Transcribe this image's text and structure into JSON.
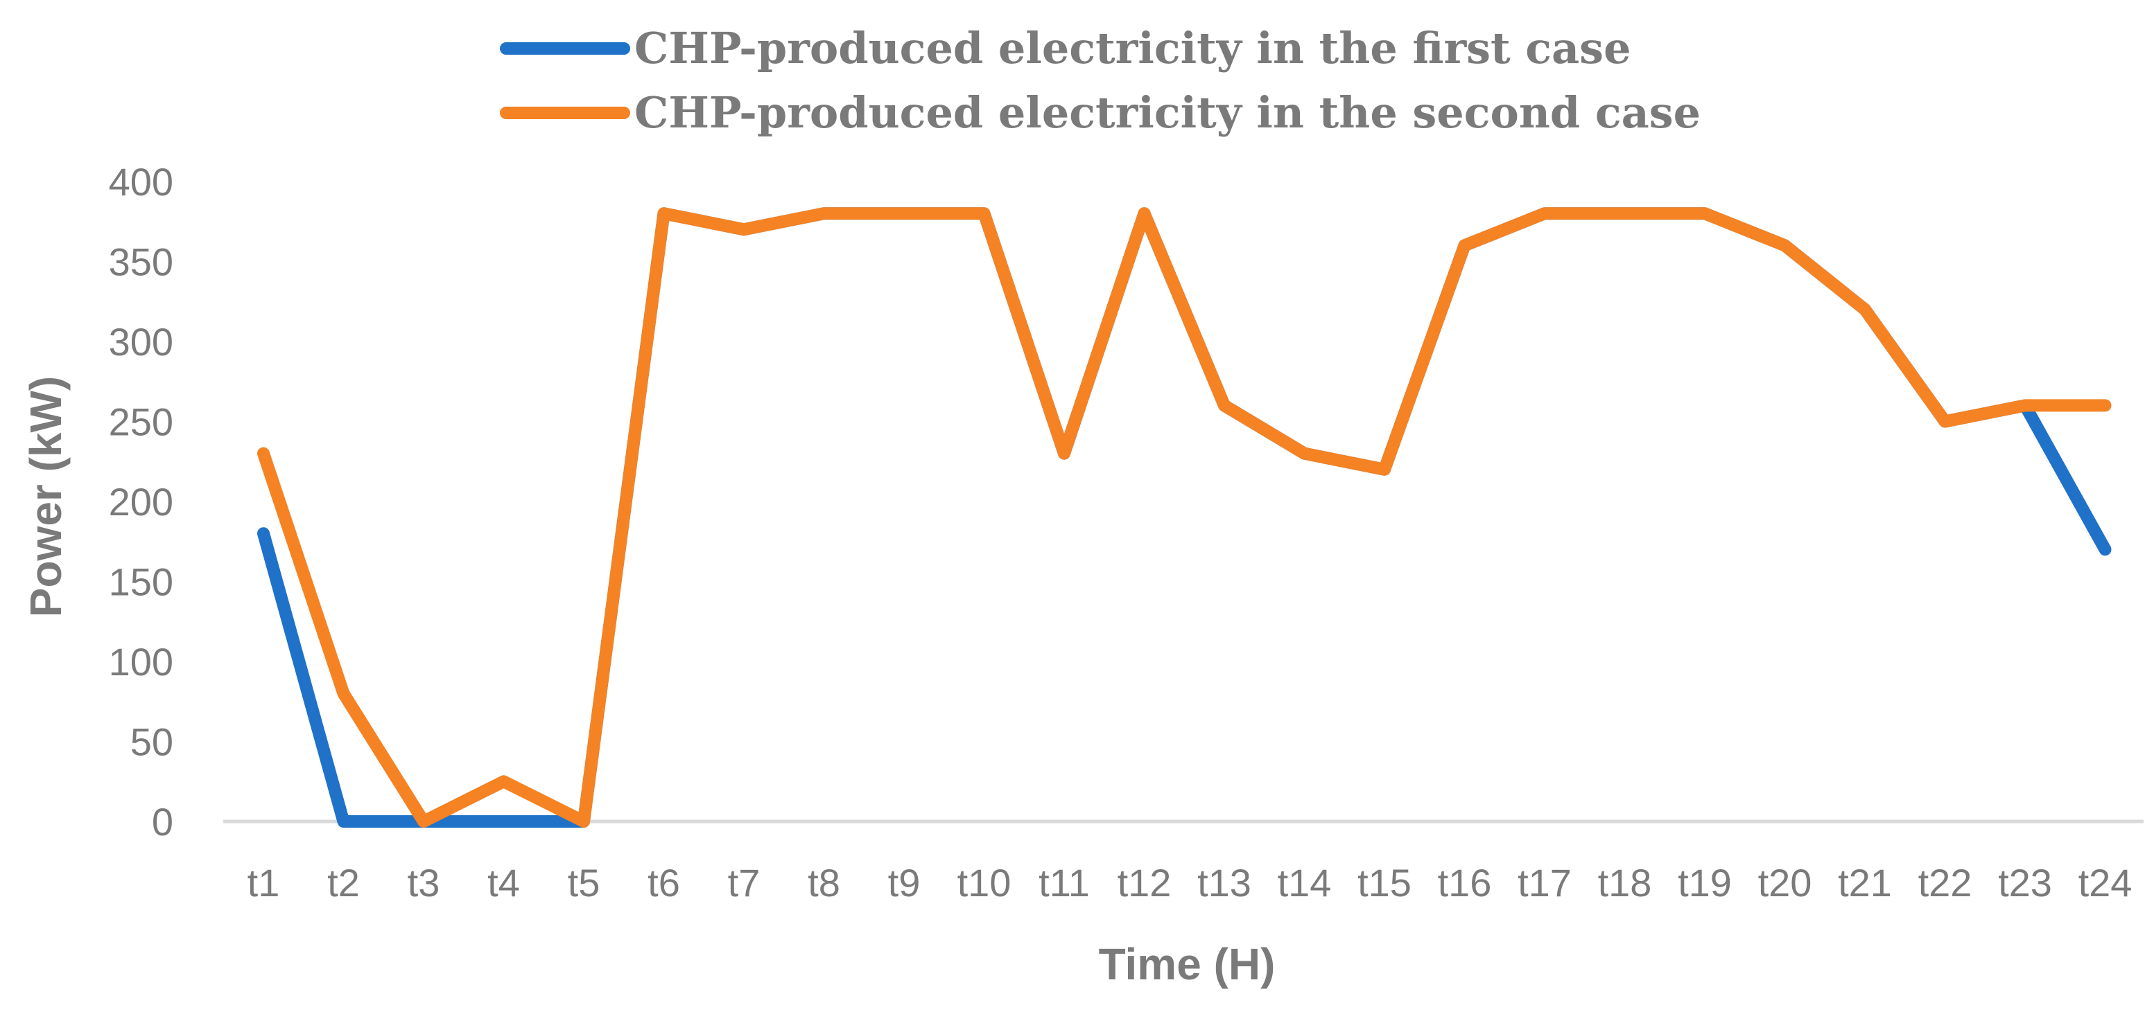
{
  "chart_data": {
    "type": "line",
    "xlabel": "Time (H)",
    "ylabel": "Power (kW)",
    "ylim": [
      0,
      400
    ],
    "yticks": [
      "0",
      "50",
      "100",
      "150",
      "200",
      "250",
      "300",
      "350",
      "400"
    ],
    "grid": false,
    "legend_position": "top",
    "categories": [
      "t1",
      "t2",
      "t3",
      "t4",
      "t5",
      "t6",
      "t7",
      "t8",
      "t9",
      "t10",
      "t11",
      "t12",
      "t13",
      "t14",
      "t15",
      "t16",
      "t17",
      "t18",
      "t19",
      "t20",
      "t21",
      "t22",
      "t23",
      "t24"
    ],
    "series": [
      {
        "name": "CHP-produced electricity in the first case",
        "color": "#1f72c8",
        "values": [
          180,
          0,
          0,
          0,
          0,
          380,
          370,
          380,
          380,
          380,
          230,
          380,
          260,
          230,
          220,
          360,
          380,
          380,
          380,
          360,
          320,
          250,
          260,
          170
        ]
      },
      {
        "name": "CHP-produced electricity in the second case",
        "color": "#f58223",
        "values": [
          230,
          80,
          0,
          25,
          0,
          380,
          370,
          380,
          380,
          380,
          230,
          380,
          260,
          230,
          220,
          360,
          380,
          380,
          380,
          360,
          320,
          250,
          260,
          260
        ]
      }
    ],
    "axis_line_color": "#d9d9d9",
    "text_color": "#7a7a7a"
  }
}
